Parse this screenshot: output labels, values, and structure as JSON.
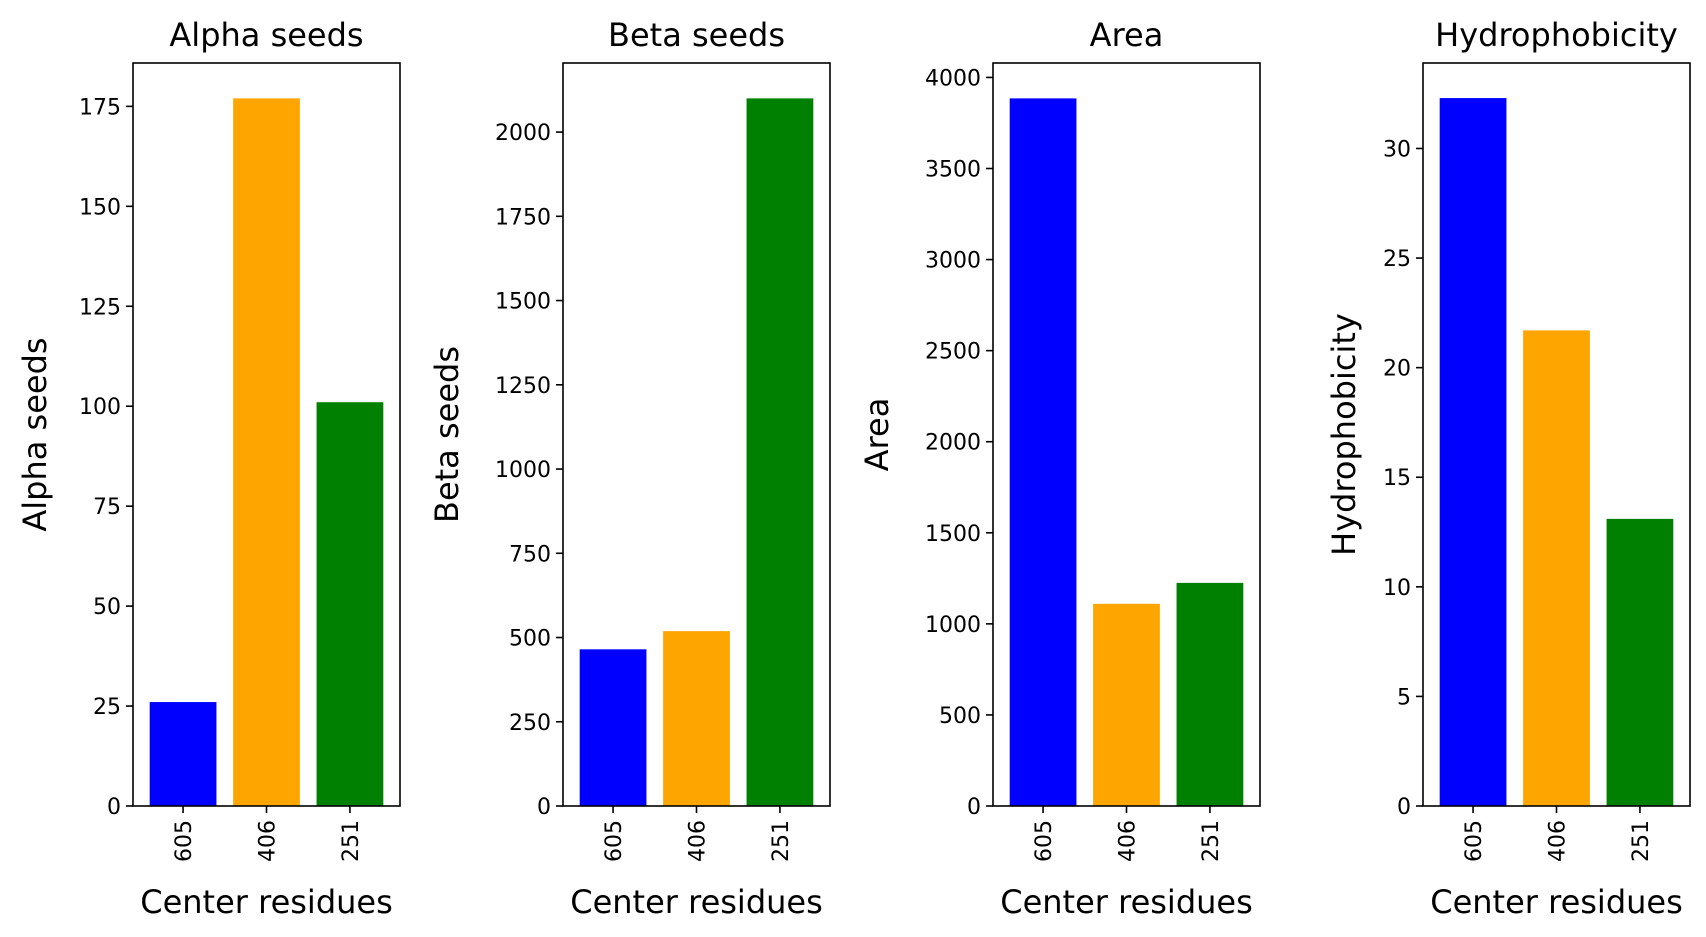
{
  "chart_data": [
    {
      "type": "bar",
      "title": "Alpha seeds",
      "xlabel": "Center residues",
      "ylabel": "Alpha seeds",
      "categories": [
        "605",
        "406",
        "251"
      ],
      "values": [
        26,
        177,
        101
      ],
      "colors": [
        "#0000ff",
        "#ffa500",
        "#008000"
      ],
      "ylim": [
        0,
        185.85
      ],
      "yticks": [
        0,
        25,
        50,
        75,
        100,
        125,
        150,
        175
      ],
      "grid": false,
      "x_tick_rotation": 90
    },
    {
      "type": "bar",
      "title": "Beta seeds",
      "xlabel": "Center residues",
      "ylabel": "Beta seeds",
      "categories": [
        "605",
        "406",
        "251"
      ],
      "values": [
        465,
        519,
        2100
      ],
      "colors": [
        "#0000ff",
        "#ffa500",
        "#008000"
      ],
      "ylim": [
        0,
        2205
      ],
      "yticks": [
        0,
        250,
        500,
        750,
        1000,
        1250,
        1500,
        1750,
        2000
      ],
      "grid": false,
      "x_tick_rotation": 90
    },
    {
      "type": "bar",
      "title": "Area",
      "xlabel": "Center residues",
      "ylabel": "Area",
      "categories": [
        "605",
        "406",
        "251"
      ],
      "values": [
        3885,
        1110,
        1225
      ],
      "colors": [
        "#0000ff",
        "#ffa500",
        "#008000"
      ],
      "ylim": [
        0,
        4079.25
      ],
      "yticks": [
        0,
        500,
        1000,
        1500,
        2000,
        2500,
        3000,
        3500,
        4000
      ],
      "grid": false,
      "x_tick_rotation": 90
    },
    {
      "type": "bar",
      "title": "Hydrophobicity",
      "xlabel": "Center residues",
      "ylabel": "Hydrophobicity",
      "categories": [
        "605",
        "406",
        "251"
      ],
      "values": [
        32.3,
        21.7,
        13.1
      ],
      "colors": [
        "#0000ff",
        "#ffa500",
        "#008000"
      ],
      "ylim": [
        0,
        33.9
      ],
      "yticks": [
        0,
        5,
        10,
        15,
        20,
        25,
        30
      ],
      "grid": false,
      "x_tick_rotation": 90
    }
  ]
}
